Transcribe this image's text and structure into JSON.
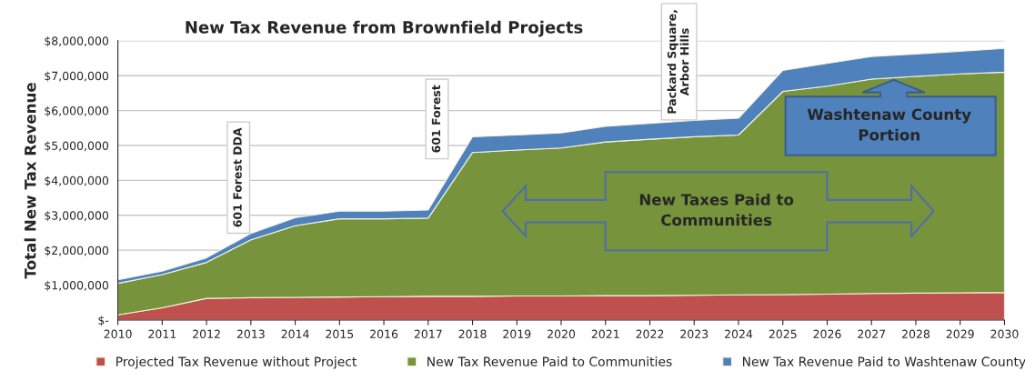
{
  "chart_data": {
    "type": "area",
    "stacked": true,
    "title": "New Tax Revenue from Brownfield Projects",
    "ylabel": "Total New Tax Revenue",
    "x": [
      2010,
      2011,
      2012,
      2013,
      2014,
      2015,
      2016,
      2017,
      2018,
      2019,
      2020,
      2021,
      2022,
      2023,
      2024,
      2025,
      2026,
      2027,
      2028,
      2029,
      2030
    ],
    "series": [
      {
        "name": "Projected Tax Revenue without Project",
        "color": "#c0504d",
        "values": [
          150000,
          350000,
          620000,
          640000,
          650000,
          660000,
          670000,
          680000,
          680000,
          690000,
          690000,
          700000,
          700000,
          710000,
          720000,
          730000,
          740000,
          760000,
          770000,
          780000,
          790000
        ]
      },
      {
        "name": "New Tax Revenue Paid to Communities",
        "color": "#77933c",
        "values": [
          900000,
          950000,
          1030000,
          1660000,
          2050000,
          2240000,
          2230000,
          2240000,
          4120000,
          4180000,
          4240000,
          4400000,
          4480000,
          4540000,
          4580000,
          5820000,
          5960000,
          6140000,
          6210000,
          6270000,
          6310000
        ]
      },
      {
        "name": "New Tax Revenue Paid to Washtenaw County",
        "color": "#4f81bd",
        "values": [
          100000,
          100000,
          130000,
          180000,
          230000,
          220000,
          220000,
          230000,
          450000,
          430000,
          430000,
          450000,
          450000,
          470000,
          480000,
          600000,
          650000,
          650000,
          640000,
          650000,
          680000
        ]
      }
    ],
    "xlim": [
      2010,
      2030
    ],
    "xticks": [
      2010,
      2011,
      2012,
      2013,
      2014,
      2015,
      2016,
      2017,
      2018,
      2019,
      2020,
      2021,
      2022,
      2023,
      2024,
      2025,
      2026,
      2027,
      2028,
      2029,
      2030
    ],
    "ylim": [
      0,
      8000000
    ],
    "yticks": [
      {
        "value": 0,
        "label": "$-"
      },
      {
        "value": 1000000,
        "label": "$1,000,000"
      },
      {
        "value": 2000000,
        "label": "$2,000,000"
      },
      {
        "value": 3000000,
        "label": "$3,000,000"
      },
      {
        "value": 4000000,
        "label": "$4,000,000"
      },
      {
        "value": 5000000,
        "label": "$5,000,000"
      },
      {
        "value": 6000000,
        "label": "$6,000,000"
      },
      {
        "value": 7000000,
        "label": "$7,000,000"
      },
      {
        "value": 8000000,
        "label": "$8,000,000"
      }
    ],
    "grid": "y",
    "legend": "bottom",
    "annotations": [
      "601 Forest DDA",
      "601 Forest",
      "Packard Square,\nArbor Hills",
      "New Taxes Paid to\nCommunities",
      "Washtenaw County\nPortion"
    ]
  }
}
